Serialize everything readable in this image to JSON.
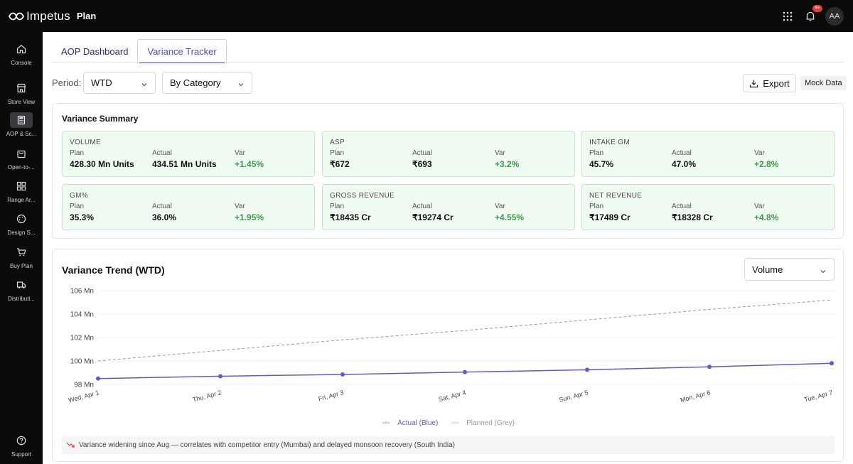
{
  "app": {
    "logo_text": "Impetus",
    "name": "Plan"
  },
  "header": {
    "notification_badge": "9+",
    "avatar_initials": "AA"
  },
  "sidebar": {
    "items": [
      {
        "label": "Console",
        "icon": "home-icon"
      },
      {
        "label": "Store View",
        "icon": "store-icon"
      },
      {
        "label": "AOP & Sc...",
        "icon": "calculator-icon",
        "active": true
      },
      {
        "label": "Open-to-...",
        "icon": "bag-icon"
      },
      {
        "label": "Range Ar...",
        "icon": "grid-icon"
      },
      {
        "label": "Design S...",
        "icon": "palette-icon"
      },
      {
        "label": "Buy Plan",
        "icon": "cart-icon"
      },
      {
        "label": "Distributi...",
        "icon": "truck-icon"
      }
    ],
    "support_label": "Support"
  },
  "tabs": [
    {
      "label": "AOP Dashboard"
    },
    {
      "label": "Variance Tracker",
      "active": true
    }
  ],
  "filters": {
    "period_label": "Period:",
    "period_value": "WTD",
    "group_value": "By Category",
    "export_label": "Export",
    "mock_tag": "Mock Data"
  },
  "summary": {
    "title": "Variance Summary",
    "col_labels": {
      "plan": "Plan",
      "actual": "Actual",
      "var": "Var"
    },
    "metrics": [
      {
        "title": "VOLUME",
        "plan": "428.30 Mn Units",
        "actual": "434.51 Mn Units",
        "var": "+1.45%"
      },
      {
        "title": "ASP",
        "plan": "₹672",
        "actual": "₹693",
        "var": "+3.2%"
      },
      {
        "title": "INTAKE GM",
        "plan": "45.7%",
        "actual": "47.0%",
        "var": "+2.8%"
      },
      {
        "title": "GM%",
        "plan": "35.3%",
        "actual": "36.0%",
        "var": "+1.95%"
      },
      {
        "title": "GROSS REVENUE",
        "plan": "₹18435 Cr",
        "actual": "₹19274 Cr",
        "var": "+4.55%"
      },
      {
        "title": "NET REVENUE",
        "plan": "₹17489 Cr",
        "actual": "₹18328 Cr",
        "var": "+4.8%"
      }
    ]
  },
  "trend": {
    "title": "Variance Trend (WTD)",
    "metric_select": "Volume",
    "insight": "Variance widening since Aug — correlates with competitor entry (Mumbai) and delayed monsoon recovery (South India)",
    "colors": {
      "actual": "#5b5bd6",
      "planned": "#9a9a9a",
      "var_positive": "#3d9a4e"
    }
  },
  "chart_data": {
    "type": "line",
    "categories": [
      "Wed, Apr 1",
      "Thu, Apr 2",
      "Fri, Apr 3",
      "Sat, Apr 4",
      "Sun, Apr 5",
      "Mon, Apr 6",
      "Tue, Apr 7"
    ],
    "y_ticks": [
      "106 Mn",
      "104 Mn",
      "102 Mn",
      "100 Mn",
      "98 Mn"
    ],
    "ylim": [
      98,
      106
    ],
    "series": [
      {
        "name": "Actual (Blue)",
        "values": [
          98.5,
          98.7,
          98.85,
          99.05,
          99.25,
          99.5,
          99.8
        ],
        "style": "solid"
      },
      {
        "name": "Planned (Grey)",
        "values": [
          100.0,
          100.9,
          101.8,
          102.6,
          103.5,
          104.4,
          105.2
        ],
        "style": "dashed"
      }
    ]
  }
}
